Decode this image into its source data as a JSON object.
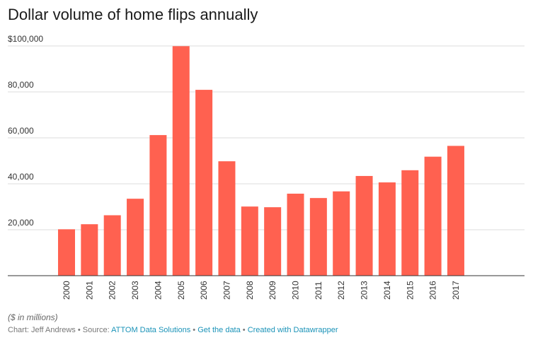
{
  "chart_data": {
    "type": "bar",
    "title": "Dollar volume of home flips annually",
    "xlabel": "",
    "ylabel": "",
    "categories": [
      "2000",
      "2001",
      "2002",
      "2003",
      "2004",
      "2005",
      "2006",
      "2007",
      "2008",
      "2009",
      "2010",
      "2011",
      "2012",
      "2013",
      "2014",
      "2015",
      "2016",
      "2017"
    ],
    "values": [
      20200,
      22400,
      26300,
      33500,
      61200,
      99900,
      80900,
      49800,
      30100,
      29800,
      35700,
      33800,
      36700,
      43400,
      40600,
      45900,
      51800,
      56500
    ],
    "ylim": [
      0,
      100000
    ],
    "yticks": [
      20000,
      40000,
      60000,
      80000,
      100000
    ],
    "ytick_labels": [
      "20,000",
      "40,000",
      "60,000",
      "80,000",
      "$100,000"
    ],
    "grid": true,
    "bar_color": "#ff6150"
  },
  "note": "($ in millions)",
  "credit": {
    "prefix": "Chart: Jeff Andrews • Source: ",
    "source": "ATTOM Data Solutions",
    "sep1": " • ",
    "get_data": "Get the data",
    "sep2": " • ",
    "created_with": "Created with Datawrapper"
  }
}
